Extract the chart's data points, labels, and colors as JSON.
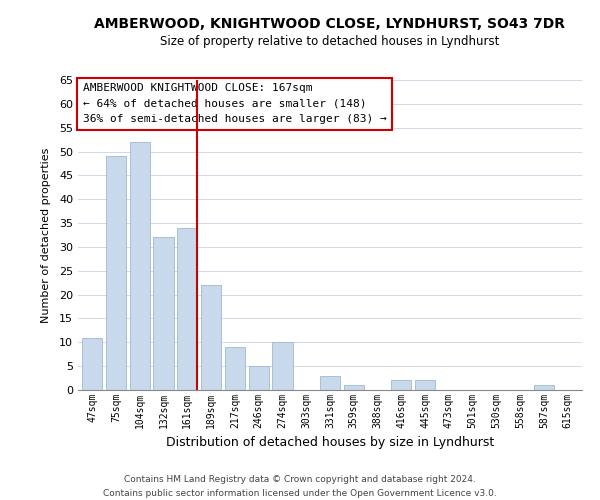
{
  "title": "AMBERWOOD, KNIGHTWOOD CLOSE, LYNDHURST, SO43 7DR",
  "subtitle": "Size of property relative to detached houses in Lyndhurst",
  "xlabel": "Distribution of detached houses by size in Lyndhurst",
  "ylabel": "Number of detached properties",
  "categories": [
    "47sqm",
    "75sqm",
    "104sqm",
    "132sqm",
    "161sqm",
    "189sqm",
    "217sqm",
    "246sqm",
    "274sqm",
    "303sqm",
    "331sqm",
    "359sqm",
    "388sqm",
    "416sqm",
    "445sqm",
    "473sqm",
    "501sqm",
    "530sqm",
    "558sqm",
    "587sqm",
    "615sqm"
  ],
  "values": [
    11,
    49,
    52,
    32,
    34,
    22,
    9,
    5,
    10,
    0,
    3,
    1,
    0,
    2,
    2,
    0,
    0,
    0,
    0,
    1,
    0
  ],
  "bar_color": "#c8d9eb",
  "bar_edge_color": "#a0b8d0",
  "highlight_index": 4,
  "vline_color": "#cc0000",
  "ylim": [
    0,
    65
  ],
  "yticks": [
    0,
    5,
    10,
    15,
    20,
    25,
    30,
    35,
    40,
    45,
    50,
    55,
    60,
    65
  ],
  "annotation_title": "AMBERWOOD KNIGHTWOOD CLOSE: 167sqm",
  "annotation_line1": "← 64% of detached houses are smaller (148)",
  "annotation_line2": "36% of semi-detached houses are larger (83) →",
  "annotation_box_color": "#ffffff",
  "annotation_box_edge": "#cc0000",
  "footer_line1": "Contains HM Land Registry data © Crown copyright and database right 2024.",
  "footer_line2": "Contains public sector information licensed under the Open Government Licence v3.0.",
  "background_color": "#ffffff",
  "grid_color": "#d0d8e8"
}
